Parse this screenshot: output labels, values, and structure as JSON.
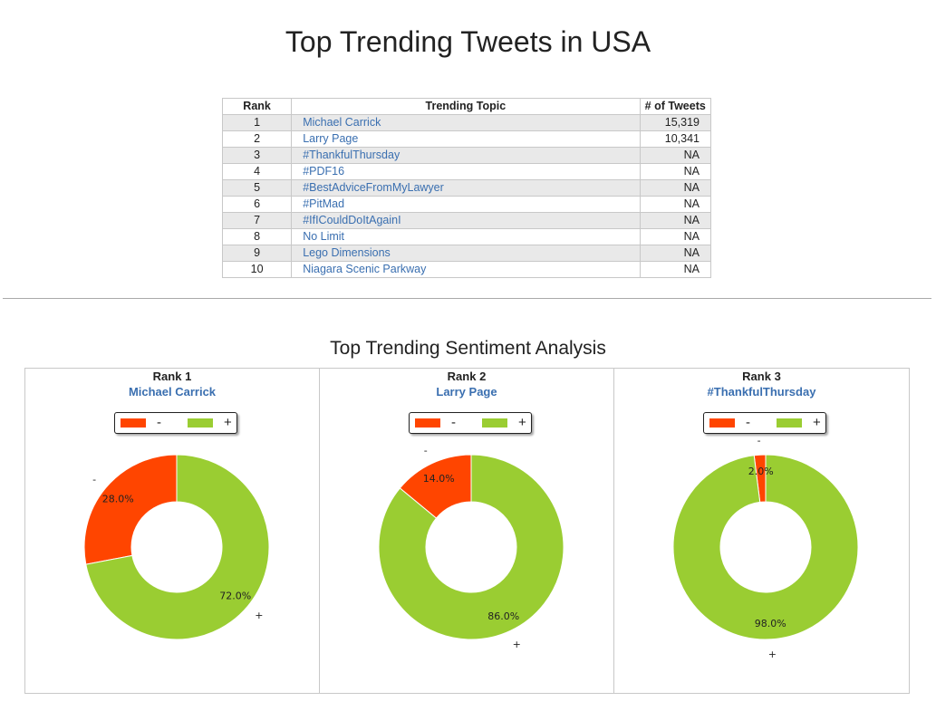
{
  "page": {
    "title": "Top Trending Tweets in USA"
  },
  "table": {
    "headers": [
      "Rank",
      "Trending Topic",
      "# of Tweets"
    ],
    "rows": [
      {
        "rank": "1",
        "topic": "Michael Carrick",
        "tweets": "15,319"
      },
      {
        "rank": "2",
        "topic": "Larry Page",
        "tweets": "10,341"
      },
      {
        "rank": "3",
        "topic": "#ThankfulThursday",
        "tweets": "NA"
      },
      {
        "rank": "4",
        "topic": "#PDF16",
        "tweets": "NA"
      },
      {
        "rank": "5",
        "topic": "#BestAdviceFromMyLawyer",
        "tweets": "NA"
      },
      {
        "rank": "6",
        "topic": "#PitMad",
        "tweets": "NA"
      },
      {
        "rank": "7",
        "topic": "#IfICouldDoItAgainI",
        "tweets": "NA"
      },
      {
        "rank": "8",
        "topic": "No Limit",
        "tweets": "NA"
      },
      {
        "rank": "9",
        "topic": "Lego Dimensions",
        "tweets": "NA"
      },
      {
        "rank": "10",
        "topic": "Niagara Scenic Parkway",
        "tweets": "NA"
      }
    ]
  },
  "sentiment": {
    "title": "Top Trending Sentiment Analysis",
    "legend": {
      "negative_label": "-",
      "positive_label": "+"
    },
    "colors": {
      "negative": "#ff4500",
      "positive": "#9acd32",
      "link": "#3a6fb0"
    }
  },
  "chart_data": [
    {
      "type": "pie",
      "title": "Rank 1",
      "subtitle": "Michael Carrick",
      "categories": [
        "-",
        "+"
      ],
      "values": [
        28.0,
        72.0
      ],
      "value_labels": [
        "28.0%",
        "72.0%"
      ],
      "donut": true,
      "legend": "top"
    },
    {
      "type": "pie",
      "title": "Rank 2",
      "subtitle": "Larry Page",
      "categories": [
        "-",
        "+"
      ],
      "values": [
        14.0,
        86.0
      ],
      "value_labels": [
        "14.0%",
        "86.0%"
      ],
      "donut": true,
      "legend": "top"
    },
    {
      "type": "pie",
      "title": "Rank 3",
      "subtitle": "#ThankfulThursday",
      "categories": [
        "-",
        "+"
      ],
      "values": [
        2.0,
        98.0
      ],
      "value_labels": [
        "2.0%",
        "98.0%"
      ],
      "donut": true,
      "legend": "top"
    }
  ]
}
